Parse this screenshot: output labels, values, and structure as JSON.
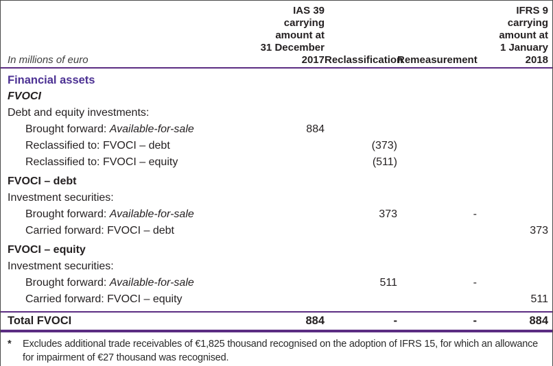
{
  "meta": {
    "unit_caption": "In millions of euro"
  },
  "table": {
    "columns": [
      {
        "id": "ias39",
        "label": "IAS 39\ncarrying\namount at\n31 December\n2017"
      },
      {
        "id": "reclassification",
        "label": "Reclassification"
      },
      {
        "id": "remeasurement",
        "label": "Remeasurement"
      },
      {
        "id": "ifrs9",
        "label": "IFRS 9\ncarrying\namount at\n1 January\n2018"
      }
    ],
    "rows": [
      {
        "label": "Financial assets",
        "ias39": "",
        "reclassification": "",
        "remeasurement": "",
        "ifrs9": ""
      },
      {
        "label": "FVOCI",
        "ias39": "",
        "reclassification": "",
        "remeasurement": "",
        "ifrs9": ""
      },
      {
        "label": "Debt and equity investments:",
        "ias39": "",
        "reclassification": "",
        "remeasurement": "",
        "ifrs9": ""
      },
      {
        "label_prefix": "Brought forward: ",
        "label_italic": "Available-for-sale",
        "ias39": "884",
        "reclassification": "",
        "remeasurement": "",
        "ifrs9": ""
      },
      {
        "label": "Reclassified to: FVOCI – debt",
        "ias39": "",
        "reclassification": "(373)",
        "remeasurement": "",
        "ifrs9": ""
      },
      {
        "label": "Reclassified to: FVOCI – equity",
        "ias39": "",
        "reclassification": "(511)",
        "remeasurement": "",
        "ifrs9": ""
      },
      {
        "label": "FVOCI – debt",
        "ias39": "",
        "reclassification": "",
        "remeasurement": "",
        "ifrs9": ""
      },
      {
        "label": "Investment securities:",
        "ias39": "",
        "reclassification": "",
        "remeasurement": "",
        "ifrs9": ""
      },
      {
        "label_prefix": "Brought forward: ",
        "label_italic": "Available-for-sale",
        "ias39": "",
        "reclassification": "373",
        "remeasurement": "-",
        "ifrs9": ""
      },
      {
        "label": "Carried forward: FVOCI – debt",
        "ias39": "",
        "reclassification": "",
        "remeasurement": "",
        "ifrs9": "373"
      },
      {
        "label": "FVOCI – equity",
        "ias39": "",
        "reclassification": "",
        "remeasurement": "",
        "ifrs9": ""
      },
      {
        "label": "Investment securities:",
        "ias39": "",
        "reclassification": "",
        "remeasurement": "",
        "ifrs9": ""
      },
      {
        "label_prefix": "Brought forward: ",
        "label_italic": "Available-for-sale",
        "ias39": "",
        "reclassification": "511",
        "remeasurement": "-",
        "ifrs9": ""
      },
      {
        "label": "Carried forward: FVOCI – equity",
        "ias39": "",
        "reclassification": "",
        "remeasurement": "",
        "ifrs9": "511"
      }
    ],
    "total_row": {
      "label": "Total FVOCI",
      "ias39": "884",
      "reclassification": "-",
      "remeasurement": "-",
      "ifrs9": "884"
    }
  },
  "footnote": {
    "marker": "*",
    "text": "Excludes additional trade receivables of €1,825 thousand recognised on the adoption of IFRS 15, for which an allowance for impairment of €27 thousand was recognised."
  },
  "colors": {
    "brand_purple": "#4c3193",
    "rule_purple": "#5b2c82",
    "text": "#231f20"
  }
}
